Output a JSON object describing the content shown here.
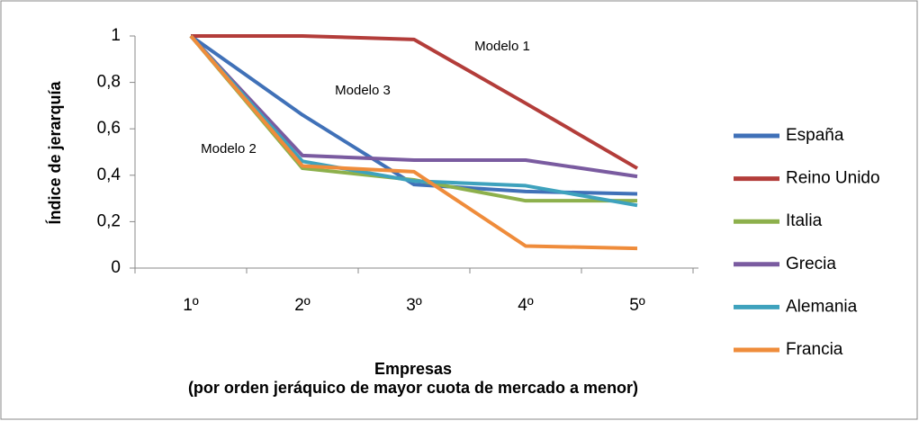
{
  "chart_data": {
    "type": "line",
    "x_label": "Empresas",
    "x_sublabel": "(por orden jeráquico de mayor cuota de mercado a menor)",
    "y_label": "Índice de jerarquía",
    "categories": [
      "1º",
      "2º",
      "3º",
      "4º",
      "5º"
    ],
    "series": [
      {
        "name": "España",
        "color": "#4071b8",
        "values": [
          1,
          0.66,
          0.36,
          0.33,
          0.32
        ]
      },
      {
        "name": "Reino Unido",
        "color": "#b33d3a",
        "values": [
          1,
          1,
          0.985,
          0.71,
          0.43
        ]
      },
      {
        "name": "Italia",
        "color": "#8db04c",
        "values": [
          1,
          0.43,
          0.38,
          0.29,
          0.29
        ]
      },
      {
        "name": "Grecia",
        "color": "#7a5ba0",
        "values": [
          1,
          0.485,
          0.465,
          0.465,
          0.395
        ]
      },
      {
        "name": "Alemania",
        "color": "#3ea2bd",
        "values": [
          1,
          0.46,
          0.375,
          0.355,
          0.27
        ]
      },
      {
        "name": "Francia",
        "color": "#ef8c3b",
        "values": [
          1,
          0.44,
          0.415,
          0.095,
          0.085
        ]
      }
    ],
    "annotations": [
      "Modelo 1",
      "Modelo 3",
      "Modelo 2"
    ],
    "ylim": [
      0,
      1
    ],
    "yticks": [
      0,
      {
        "value": 0.2,
        "label": "0,2"
      },
      {
        "value": 0.4,
        "label": "0,4"
      },
      {
        "value": 0.6,
        "label": "0,6"
      },
      {
        "value": 0.8,
        "label": "0,8"
      },
      1
    ],
    "grid": false,
    "legend": "right"
  }
}
